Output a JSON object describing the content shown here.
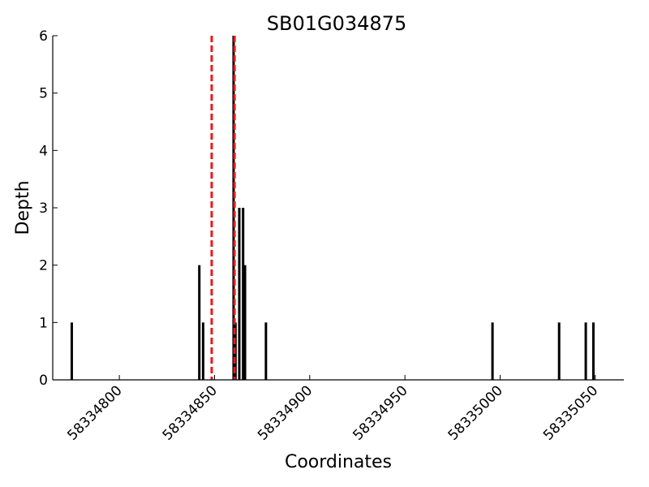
{
  "chart_data": {
    "type": "bar",
    "title": "SB01G034875",
    "xlabel": "Coordinates",
    "ylabel": "Depth",
    "xlim": [
      58334765,
      58335065
    ],
    "ylim": [
      0,
      6
    ],
    "x_ticks": [
      58334800,
      58334850,
      58334900,
      58334950,
      58335000,
      58335050
    ],
    "y_ticks": [
      0,
      1,
      2,
      3,
      4,
      5,
      6
    ],
    "bar_color": "#000000",
    "grid": false,
    "bars": [
      {
        "x": 58334775,
        "y": 1
      },
      {
        "x": 58334842,
        "y": 2
      },
      {
        "x": 58334844,
        "y": 1
      },
      {
        "x": 58334860,
        "y": 6
      },
      {
        "x": 58334861,
        "y": 1
      },
      {
        "x": 58334863,
        "y": 3
      },
      {
        "x": 58334865,
        "y": 3
      },
      {
        "x": 58334866,
        "y": 2
      },
      {
        "x": 58334877,
        "y": 1
      },
      {
        "x": 58334996,
        "y": 1
      },
      {
        "x": 58335031,
        "y": 1
      },
      {
        "x": 58335045,
        "y": 1
      },
      {
        "x": 58335049,
        "y": 1
      }
    ],
    "vlines": [
      {
        "x": 58334848.5,
        "color": "#e8191e",
        "style": "dashed"
      },
      {
        "x": 58334860.5,
        "color": "#e8191e",
        "style": "dashed"
      }
    ]
  }
}
